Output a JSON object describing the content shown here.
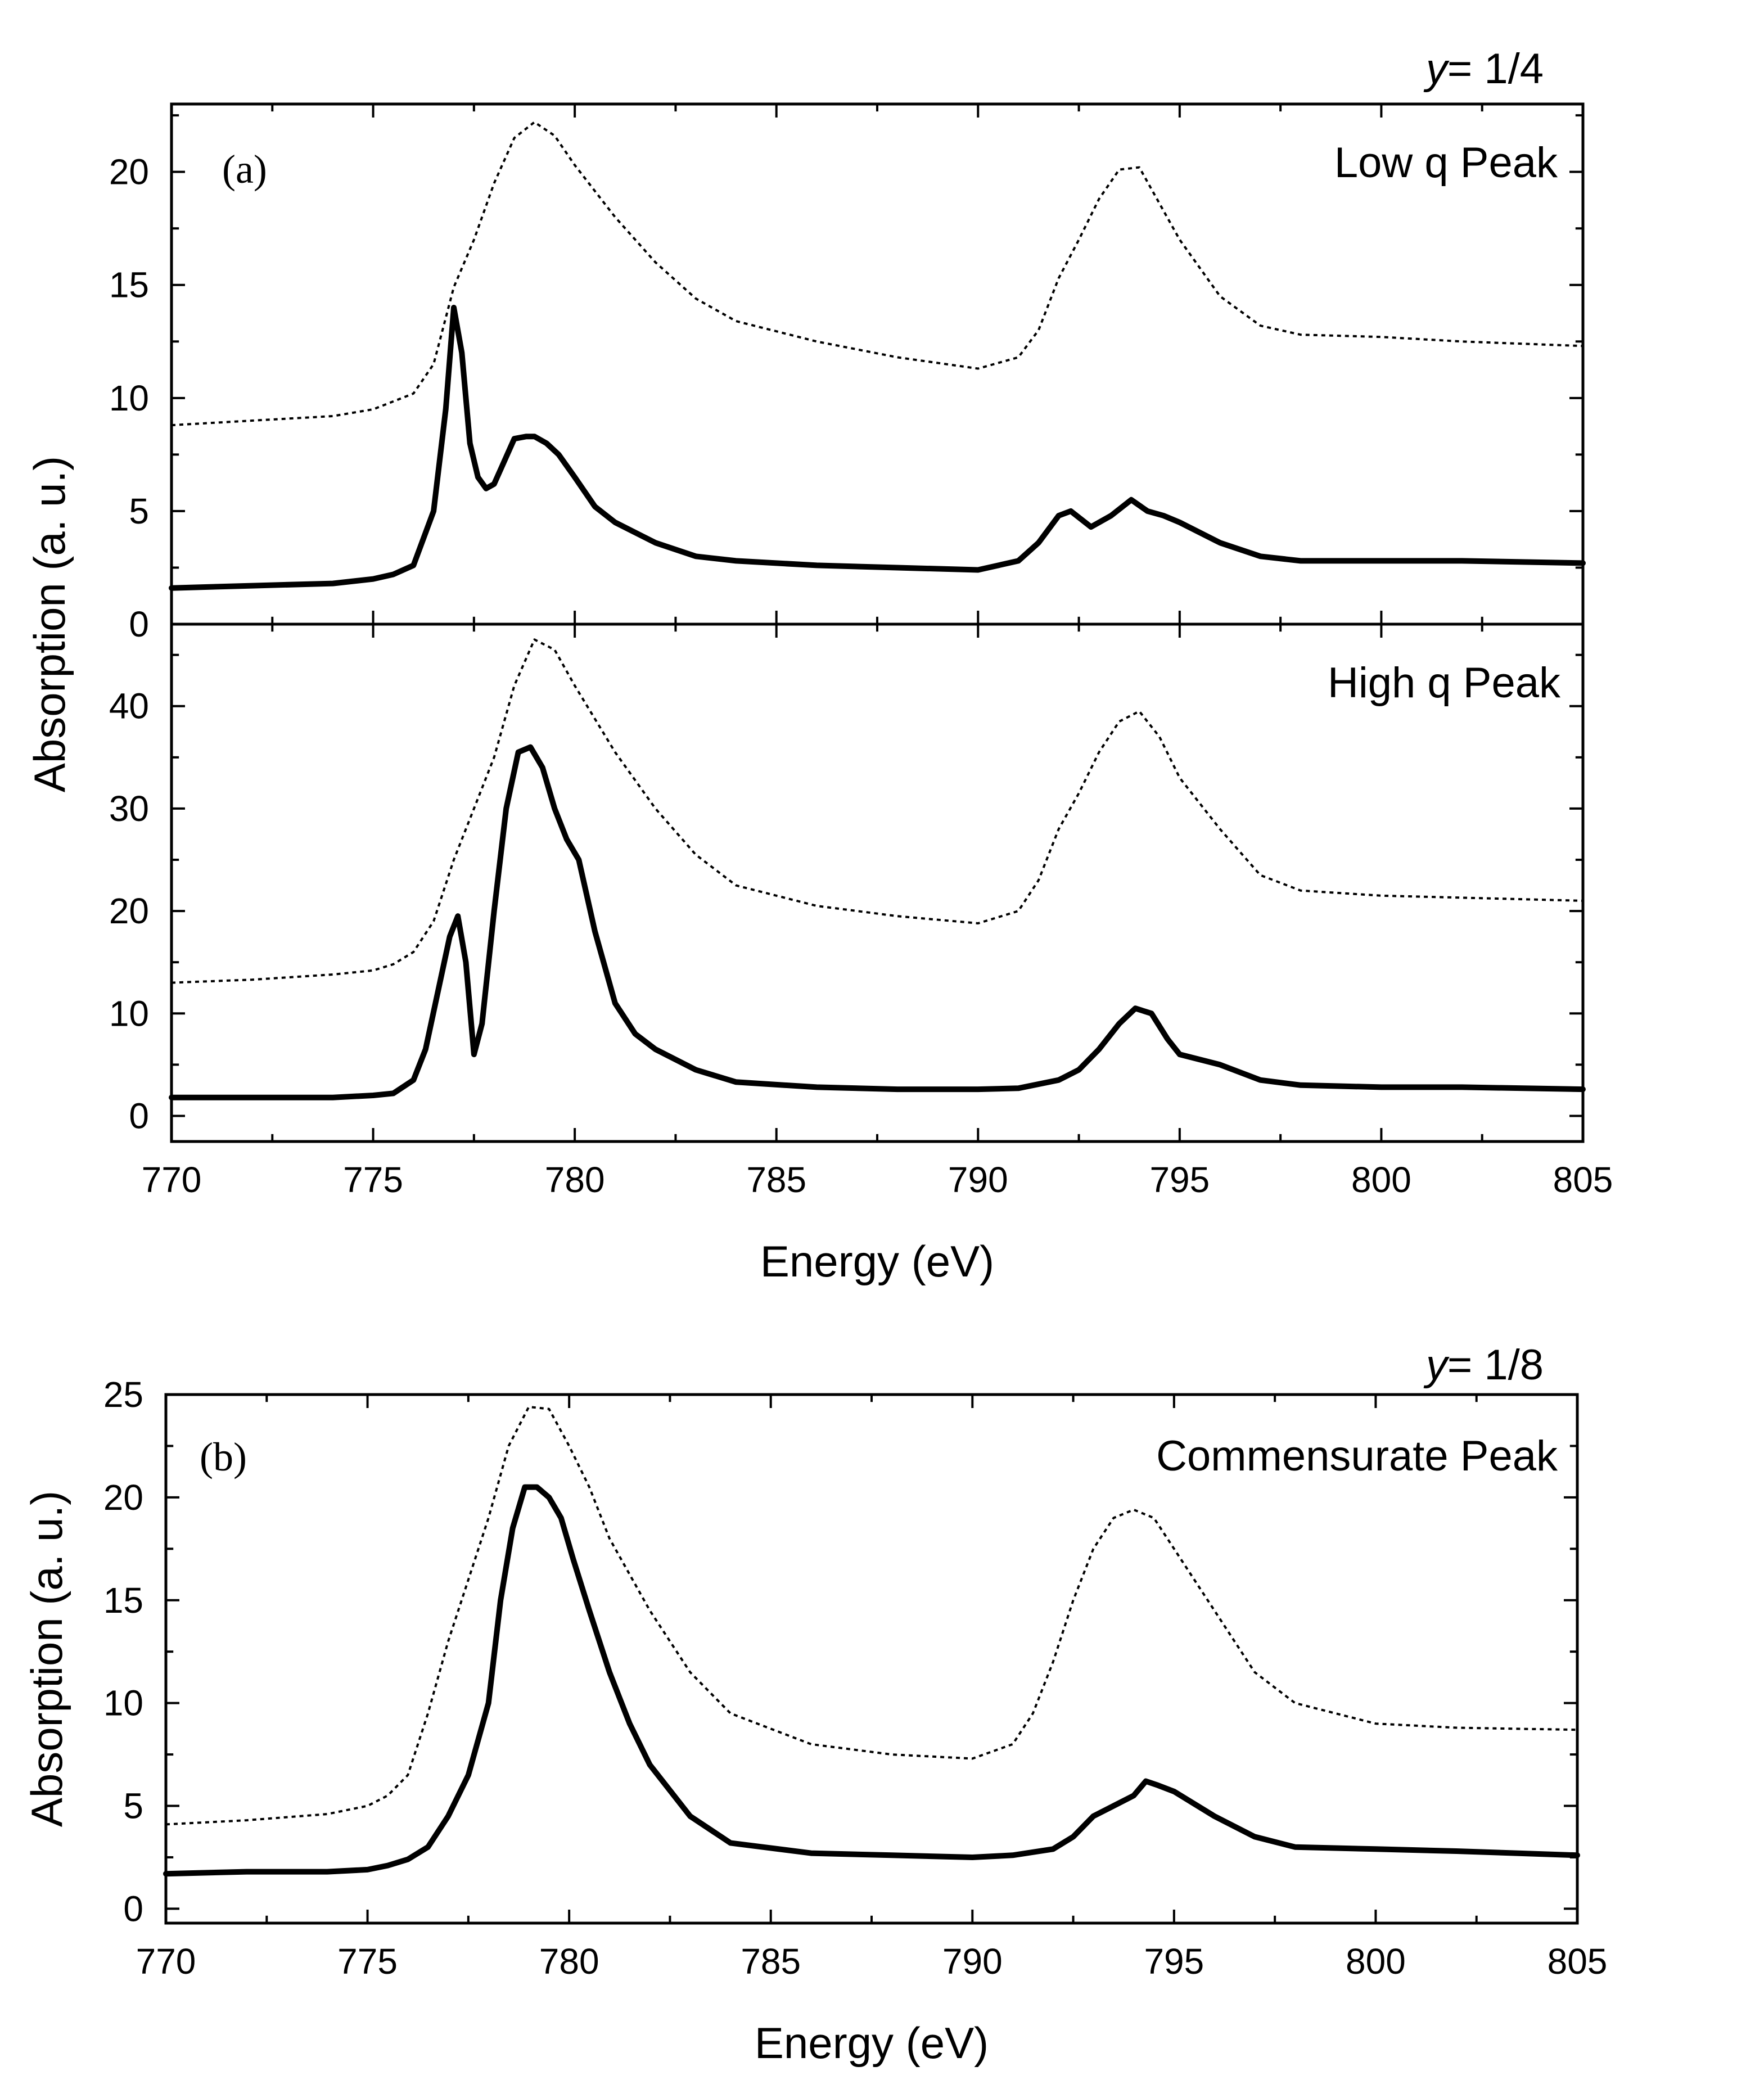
{
  "figure": {
    "xaxis_label": "Energy (eV)",
    "yaxis_label": "Absorption (a. u.)"
  },
  "chart_data": [
    {
      "type": "line",
      "panel": "(a)",
      "title": "y = 1/4",
      "title_var": "y",
      "title_value": "= 1/4",
      "annotation": "Low q Peak",
      "xlabel": "",
      "ylabel": "Absorption (a. u.)",
      "xlim": [
        770,
        805
      ],
      "ylim": [
        0,
        23
      ],
      "yticks": [
        0,
        5,
        10,
        15,
        20
      ],
      "xticks": [
        770,
        775,
        780,
        785,
        790,
        795,
        800,
        805
      ],
      "show_xticklabels": false,
      "series": [
        {
          "name": "dotted",
          "style": "dotted",
          "x": [
            770,
            772,
            774,
            775,
            776,
            776.5,
            777,
            777.5,
            778,
            778.5,
            779,
            779.5,
            780,
            781,
            782,
            783,
            784,
            786,
            788,
            790,
            791,
            791.5,
            792,
            792.5,
            793,
            793.5,
            794,
            794.5,
            795,
            796,
            797,
            798,
            800,
            802,
            805
          ],
          "y": [
            8.8,
            9.0,
            9.2,
            9.5,
            10.2,
            11.5,
            14.9,
            17.0,
            19.5,
            21.5,
            22.2,
            21.6,
            20.3,
            18.0,
            16.0,
            14.4,
            13.4,
            12.5,
            11.8,
            11.3,
            11.8,
            13.0,
            15.3,
            17.0,
            18.8,
            20.1,
            20.2,
            18.6,
            17.0,
            14.5,
            13.2,
            12.8,
            12.7,
            12.5,
            12.3
          ]
        },
        {
          "name": "solid",
          "style": "solid",
          "x": [
            770,
            772,
            774,
            775,
            775.5,
            776,
            776.5,
            776.8,
            777.0,
            777.2,
            777.4,
            777.6,
            777.8,
            778.0,
            778.2,
            778.5,
            778.8,
            779.0,
            779.3,
            779.6,
            780,
            780.5,
            781,
            782,
            783,
            784,
            786,
            788,
            790,
            791,
            791.5,
            792,
            792.3,
            792.8,
            793.3,
            793.8,
            794.2,
            794.6,
            795,
            796,
            797,
            798,
            800,
            802,
            805
          ],
          "y": [
            1.6,
            1.7,
            1.8,
            2.0,
            2.2,
            2.6,
            5.0,
            9.5,
            14.0,
            12.0,
            8.0,
            6.5,
            6.0,
            6.2,
            7.0,
            8.2,
            8.3,
            8.3,
            8.0,
            7.5,
            6.5,
            5.2,
            4.5,
            3.6,
            3.0,
            2.8,
            2.6,
            2.5,
            2.4,
            2.8,
            3.6,
            4.8,
            5.0,
            4.3,
            4.8,
            5.5,
            5.0,
            4.8,
            4.5,
            3.6,
            3.0,
            2.8,
            2.8,
            2.8,
            2.7
          ]
        }
      ]
    },
    {
      "type": "line",
      "panel": "",
      "title": "",
      "annotation": "High q Peak",
      "xlabel": "Energy (eV)",
      "ylabel": "Absorption (a. u.)",
      "xlim": [
        770,
        805
      ],
      "ylim": [
        -2.5,
        48
      ],
      "yticks": [
        0,
        10,
        20,
        30,
        40
      ],
      "xticks": [
        770,
        775,
        780,
        785,
        790,
        795,
        800,
        805
      ],
      "show_xticklabels": true,
      "series": [
        {
          "name": "dotted",
          "style": "dotted",
          "x": [
            770,
            772,
            774,
            775,
            775.5,
            776,
            776.5,
            777,
            777.5,
            778,
            778.5,
            779,
            779.5,
            780,
            781,
            782,
            783,
            784,
            786,
            788,
            790,
            791,
            791.5,
            792,
            792.5,
            793,
            793.5,
            794,
            794.5,
            795,
            796,
            797,
            798,
            800,
            802,
            805
          ],
          "y": [
            13.0,
            13.3,
            13.8,
            14.2,
            14.8,
            16.0,
            19.0,
            25.0,
            30.0,
            35.0,
            42.0,
            46.5,
            45.5,
            42.0,
            35.5,
            30.0,
            25.5,
            22.5,
            20.5,
            19.5,
            18.8,
            20.0,
            23.0,
            28.0,
            31.5,
            35.5,
            38.5,
            39.5,
            37.0,
            33.0,
            28.0,
            23.5,
            22.0,
            21.5,
            21.3,
            21.0
          ]
        },
        {
          "name": "solid",
          "style": "solid",
          "x": [
            770,
            772,
            774,
            775,
            775.5,
            776,
            776.3,
            776.6,
            776.9,
            777.1,
            777.3,
            777.5,
            777.7,
            778.0,
            778.3,
            778.6,
            778.9,
            779.2,
            779.5,
            779.8,
            780.1,
            780.5,
            781,
            781.5,
            782,
            783,
            784,
            786,
            788,
            790,
            791,
            792,
            792.5,
            793,
            793.5,
            793.9,
            794.3,
            794.7,
            795,
            796,
            797,
            798,
            800,
            802,
            805
          ],
          "y": [
            1.8,
            1.8,
            1.8,
            2.0,
            2.2,
            3.5,
            6.5,
            12.0,
            17.5,
            19.5,
            15.0,
            6.0,
            9.0,
            20.0,
            30.0,
            35.5,
            36.0,
            34.0,
            30.0,
            27.0,
            25.0,
            18.0,
            11.0,
            8.0,
            6.5,
            4.5,
            3.3,
            2.8,
            2.6,
            2.6,
            2.7,
            3.5,
            4.5,
            6.5,
            9.0,
            10.5,
            10.0,
            7.5,
            6.0,
            5.0,
            3.5,
            3.0,
            2.8,
            2.8,
            2.6
          ]
        }
      ]
    },
    {
      "type": "line",
      "panel": "(b)",
      "title": "y = 1/8",
      "title_var": "y",
      "title_value": "= 1/8",
      "annotation": "Commensurate Peak",
      "xlabel": "Energy (eV)",
      "ylabel": "Absorption (a. u.)",
      "xlim": [
        770,
        805
      ],
      "ylim": [
        -0.7,
        25
      ],
      "yticks": [
        0,
        5,
        10,
        15,
        20,
        25
      ],
      "xticks": [
        770,
        775,
        780,
        785,
        790,
        795,
        800,
        805
      ],
      "show_xticklabels": true,
      "series": [
        {
          "name": "dotted",
          "style": "dotted",
          "x": [
            770,
            772,
            774,
            775,
            775.5,
            776,
            776.5,
            777,
            777.5,
            778,
            778.5,
            779,
            779.5,
            780,
            780.5,
            781,
            782,
            783,
            784,
            786,
            788,
            790,
            791,
            791.5,
            792,
            792.5,
            793,
            793.5,
            794,
            794.5,
            795,
            796,
            797,
            798,
            800,
            802,
            805
          ],
          "y": [
            4.1,
            4.3,
            4.6,
            5.0,
            5.5,
            6.5,
            9.5,
            13.0,
            16.0,
            19.0,
            22.5,
            24.4,
            24.3,
            22.5,
            20.5,
            18.0,
            14.5,
            11.5,
            9.5,
            8.0,
            7.5,
            7.3,
            8.0,
            9.5,
            12.0,
            15.0,
            17.5,
            19.0,
            19.4,
            19.0,
            17.5,
            14.5,
            11.5,
            10.0,
            9.0,
            8.8,
            8.7
          ]
        },
        {
          "name": "solid",
          "style": "solid",
          "x": [
            770,
            772,
            774,
            775,
            775.5,
            776,
            776.5,
            777,
            777.5,
            778,
            778.3,
            778.6,
            778.9,
            779.2,
            779.5,
            779.8,
            780.1,
            780.5,
            781,
            781.5,
            782,
            783,
            784,
            786,
            788,
            790,
            791,
            792,
            792.5,
            793,
            793.5,
            794,
            794.3,
            794.6,
            795,
            796,
            797,
            798,
            800,
            802,
            805
          ],
          "y": [
            1.7,
            1.8,
            1.8,
            1.9,
            2.1,
            2.4,
            3.0,
            4.5,
            6.5,
            10.0,
            15.0,
            18.5,
            20.5,
            20.5,
            20.0,
            19.0,
            17.0,
            14.5,
            11.5,
            9.0,
            7.0,
            4.5,
            3.2,
            2.7,
            2.6,
            2.5,
            2.6,
            2.9,
            3.5,
            4.5,
            5.0,
            5.5,
            6.2,
            6.0,
            5.7,
            4.5,
            3.5,
            3.0,
            2.9,
            2.8,
            2.6
          ]
        }
      ]
    }
  ]
}
